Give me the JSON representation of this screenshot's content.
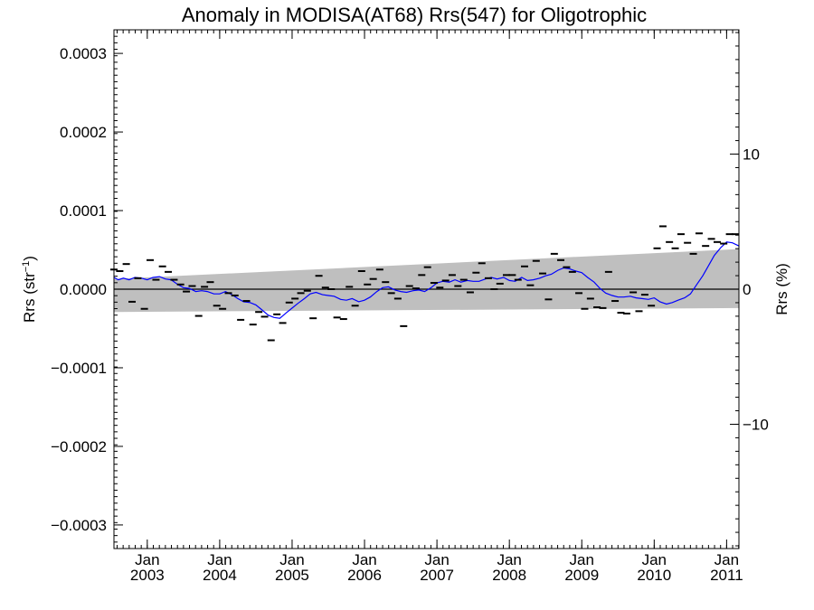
{
  "chart_data": {
    "type": "scatter",
    "title": "Anomaly in MODISA(AT68) Rrs(547) for Oligotrophic",
    "ylabel_left": "Rrs (str",
    "ylabel_left_sup": "−1",
    "ylabel_left_close": ")",
    "ylabel_right": "Rrs (%)",
    "xlim": [
      2002.54,
      2011.17
    ],
    "ylim": [
      -0.00033,
      0.00033
    ],
    "y_ticks": [
      -0.0003,
      -0.0002,
      -0.0001,
      0.0,
      0.0001,
      0.0002,
      0.0003
    ],
    "y_tick_labels": [
      "−0.0003",
      "−0.0002",
      "−0.0001",
      "0.0000",
      "0.0001",
      "0.0002",
      "0.0003"
    ],
    "right_ticks": [
      -10,
      0,
      10
    ],
    "right_tick_labels": [
      "−10",
      "0",
      "10"
    ],
    "right_ylim": [
      -19.2,
      19.2
    ],
    "x_ticks": [
      2003,
      2004,
      2005,
      2006,
      2007,
      2008,
      2009,
      2010,
      2011
    ],
    "x_tick_labels_top": [
      "Jan",
      "Jan",
      "Jan",
      "Jan",
      "Jan",
      "Jan",
      "Jan",
      "Jan",
      "Jan"
    ],
    "x_tick_labels_bottom": [
      "2003",
      "2004",
      "2005",
      "2006",
      "2007",
      "2008",
      "2009",
      "2010",
      "2011"
    ],
    "zero_line": 0,
    "band": {
      "x": [
        2002.54,
        2011.17
      ],
      "upper": [
        1.3e-05,
        5.1e-05
      ],
      "lower": [
        -2.9e-05,
        -2.4e-05
      ]
    },
    "band_color": "#bfbfbf",
    "line_color": "#0000ff",
    "marker_color": "#000000",
    "monthly_anomalies": {
      "x": [
        2002.54,
        2002.62,
        2002.71,
        2002.79,
        2002.87,
        2002.96,
        2003.04,
        2003.12,
        2003.21,
        2003.29,
        2003.37,
        2003.46,
        2003.54,
        2003.62,
        2003.71,
        2003.79,
        2003.87,
        2003.96,
        2004.04,
        2004.12,
        2004.21,
        2004.29,
        2004.37,
        2004.46,
        2004.54,
        2004.62,
        2004.71,
        2004.79,
        2004.87,
        2004.96,
        2005.04,
        2005.12,
        2005.21,
        2005.29,
        2005.37,
        2005.46,
        2005.54,
        2005.62,
        2005.71,
        2005.79,
        2005.87,
        2005.96,
        2006.04,
        2006.12,
        2006.21,
        2006.29,
        2006.37,
        2006.46,
        2006.54,
        2006.62,
        2006.71,
        2006.79,
        2006.87,
        2006.96,
        2007.04,
        2007.12,
        2007.21,
        2007.29,
        2007.37,
        2007.46,
        2007.54,
        2007.62,
        2007.71,
        2007.79,
        2007.87,
        2007.96,
        2008.04,
        2008.12,
        2008.21,
        2008.29,
        2008.37,
        2008.46,
        2008.54,
        2008.62,
        2008.71,
        2008.79,
        2008.87,
        2008.96,
        2009.04,
        2009.12,
        2009.21,
        2009.29,
        2009.37,
        2009.46,
        2009.54,
        2009.62,
        2009.71,
        2009.79,
        2009.87,
        2009.96,
        2010.04,
        2010.12,
        2010.21,
        2010.29,
        2010.37,
        2010.46,
        2010.54,
        2010.62,
        2010.71,
        2010.79,
        2010.87,
        2010.96,
        2011.04,
        2011.12
      ],
      "y": [
        2.5e-05,
        2.3e-05,
        3.2e-05,
        -1.6e-05,
        1.4e-05,
        -2.5e-05,
        3.7e-05,
        1.2e-05,
        2.9e-05,
        2.2e-05,
        1.2e-05,
        6e-06,
        -3e-06,
        4e-06,
        -3.4e-05,
        3e-06,
        9e-06,
        -2.1e-05,
        -2.5e-05,
        -5e-06,
        -8e-06,
        -3.9e-05,
        -1.5e-05,
        -4.5e-05,
        -2.9e-05,
        -3.5e-05,
        -6.5e-05,
        -3.2e-05,
        -4.3e-05,
        -1.7e-05,
        -1.2e-05,
        -5e-06,
        -2e-06,
        -3.7e-05,
        1.7e-05,
        2e-06,
        0.0,
        -3.6e-05,
        -3.8e-05,
        3e-06,
        -2.1e-05,
        2.3e-05,
        6e-06,
        1.3e-05,
        2.5e-05,
        9e-06,
        -5e-06,
        -1.2e-05,
        -4.7e-05,
        4e-06,
        1e-06,
        1.8e-05,
        2.8e-05,
        8e-06,
        2e-06,
        1.1e-05,
        1.8e-05,
        4e-06,
        1.2e-05,
        -4e-06,
        2.1e-05,
        3.3e-05,
        1.4e-05,
        0.0,
        7e-06,
        1.8e-05,
        1.8e-05,
        1.2e-05,
        2.9e-05,
        5e-06,
        3.6e-05,
        2e-05,
        -1.3e-05,
        4.5e-05,
        3.7e-05,
        2.8e-05,
        2.2e-05,
        -5e-06,
        -2.5e-05,
        -1.2e-05,
        -2.3e-05,
        -2.4e-05,
        2.2e-05,
        -1.5e-05,
        -3e-05,
        -3.1e-05,
        -4e-06,
        -2.8e-05,
        -7e-06,
        -2.1e-05,
        5.2e-05,
        8e-05,
        6e-05,
        5.2e-05,
        7e-05,
        5.9e-05,
        4.5e-05,
        7.1e-05,
        5.5e-05,
        6.4e-05,
        6e-05,
        5.8e-05,
        7e-05,
        7e-05
      ]
    },
    "running_mean": {
      "x": [
        2002.54,
        2002.6,
        2002.67,
        2002.75,
        2002.83,
        2002.92,
        2003.0,
        2003.08,
        2003.17,
        2003.25,
        2003.33,
        2003.42,
        2003.5,
        2003.58,
        2003.67,
        2003.75,
        2003.83,
        2003.92,
        2004.0,
        2004.08,
        2004.17,
        2004.25,
        2004.33,
        2004.42,
        2004.5,
        2004.58,
        2004.67,
        2004.75,
        2004.83,
        2004.92,
        2005.0,
        2005.08,
        2005.17,
        2005.25,
        2005.33,
        2005.42,
        2005.5,
        2005.58,
        2005.67,
        2005.75,
        2005.83,
        2005.92,
        2006.0,
        2006.08,
        2006.17,
        2006.25,
        2006.33,
        2006.42,
        2006.5,
        2006.58,
        2006.67,
        2006.75,
        2006.83,
        2006.92,
        2007.0,
        2007.08,
        2007.17,
        2007.25,
        2007.33,
        2007.42,
        2007.5,
        2007.58,
        2007.67,
        2007.75,
        2007.83,
        2007.92,
        2008.0,
        2008.08,
        2008.17,
        2008.25,
        2008.33,
        2008.42,
        2008.5,
        2008.58,
        2008.67,
        2008.75,
        2008.83,
        2008.92,
        2009.0,
        2009.08,
        2009.17,
        2009.25,
        2009.33,
        2009.42,
        2009.5,
        2009.58,
        2009.67,
        2009.75,
        2009.83,
        2009.92,
        2010.0,
        2010.08,
        2010.17,
        2010.25,
        2010.33,
        2010.42,
        2010.5,
        2010.58,
        2010.67,
        2010.75,
        2010.83,
        2010.92,
        2011.0,
        2011.08,
        2011.17
      ],
      "y": [
        1.5e-05,
        1.2e-05,
        1.4e-05,
        1.2e-05,
        1.5e-05,
        1.4e-05,
        1.2e-05,
        1.5e-05,
        1.6e-05,
        1.3e-05,
        1.2e-05,
        6e-06,
        2e-06,
        1e-06,
        -3e-06,
        -2e-06,
        -3e-06,
        -6e-06,
        -6e-06,
        -3e-06,
        -7e-06,
        -1.2e-05,
        -1.6e-05,
        -1.7e-05,
        -2e-05,
        -2.6e-05,
        -3.3e-05,
        -3.6e-05,
        -3.7e-05,
        -3e-05,
        -2.4e-05,
        -1.8e-05,
        -1.2e-05,
        -6e-06,
        -4e-06,
        -7e-06,
        -8e-06,
        -9e-06,
        -1.3e-05,
        -1.4e-05,
        -1.2e-05,
        -1.6e-05,
        -1.4e-05,
        -1e-05,
        -3e-06,
        2e-06,
        3e-06,
        -1e-06,
        -3e-06,
        -4e-06,
        -2e-06,
        -1e-06,
        -3e-06,
        2e-06,
        8e-06,
        1e-05,
        9e-06,
        1.2e-05,
        9e-06,
        1.1e-05,
        1e-05,
        1e-05,
        1.3e-05,
        1.5e-05,
        1.3e-05,
        1.5e-05,
        1.1e-05,
        1e-05,
        1.5e-05,
        1.1e-05,
        1.2e-05,
        1.4e-05,
        1.7e-05,
        1.9e-05,
        2.4e-05,
        2.7e-05,
        2.6e-05,
        2.3e-05,
        2.1e-05,
        1.5e-05,
        9e-06,
        1e-06,
        -5e-06,
        -8e-06,
        -1e-05,
        -1e-05,
        -9e-06,
        -1.1e-05,
        -1.2e-05,
        -1.3e-05,
        -1.1e-05,
        -1.6e-05,
        -1.9e-05,
        -1.7e-05,
        -1.4e-05,
        -1.1e-05,
        -6e-06,
        5e-06,
        1.7e-05,
        3e-05,
        4.3e-05,
        5.3e-05,
        6e-05,
        5.9e-05,
        5.5e-05
      ]
    }
  }
}
